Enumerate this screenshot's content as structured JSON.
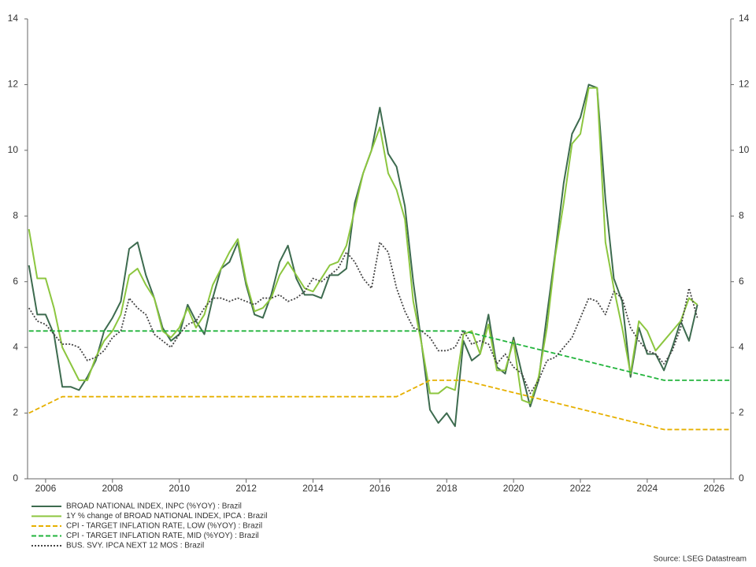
{
  "chart_data": {
    "type": "line",
    "source": "Source: LSEG Datastream",
    "xlim": [
      2005.46,
      2026.5
    ],
    "xticks": [
      2006,
      2008,
      2010,
      2012,
      2014,
      2016,
      2018,
      2020,
      2022,
      2024,
      2026
    ],
    "ylim": [
      0,
      14
    ],
    "yticks": [
      0,
      2,
      4,
      6,
      8,
      10,
      12,
      14
    ],
    "y2lim": [
      0,
      14
    ],
    "y2ticks": [
      0,
      2,
      4,
      6,
      8,
      10,
      12,
      14
    ],
    "series": [
      {
        "name": "BROAD NATIONAL INDEX, INPC (%YOY) : Brazil",
        "color": "#3d6b4f",
        "style": "solid",
        "x": [
          2005.5,
          2005.75,
          2006,
          2006.25,
          2006.5,
          2006.75,
          2007,
          2007.25,
          2007.5,
          2007.75,
          2008,
          2008.25,
          2008.5,
          2008.75,
          2009,
          2009.25,
          2009.5,
          2009.75,
          2010,
          2010.25,
          2010.5,
          2010.75,
          2011,
          2011.25,
          2011.5,
          2011.75,
          2012,
          2012.25,
          2012.5,
          2012.75,
          2013,
          2013.25,
          2013.5,
          2013.75,
          2014,
          2014.25,
          2014.5,
          2014.75,
          2015,
          2015.25,
          2015.5,
          2015.75,
          2016,
          2016.25,
          2016.5,
          2016.75,
          2017,
          2017.25,
          2017.5,
          2017.75,
          2018,
          2018.25,
          2018.5,
          2018.75,
          2019,
          2019.25,
          2019.5,
          2019.75,
          2020,
          2020.25,
          2020.5,
          2020.75,
          2021,
          2021.25,
          2021.5,
          2021.75,
          2022,
          2022.25,
          2022.5,
          2022.75,
          2023,
          2023.25,
          2023.5,
          2023.75,
          2024,
          2024.25,
          2024.5,
          2024.75,
          2025,
          2025.25,
          2025.5
        ],
        "values": [
          6.5,
          5.0,
          5.0,
          4.4,
          2.8,
          2.8,
          2.7,
          3.1,
          3.6,
          4.5,
          4.9,
          5.4,
          7.0,
          7.2,
          6.2,
          5.5,
          4.6,
          4.2,
          4.4,
          5.3,
          4.8,
          4.4,
          5.5,
          6.4,
          6.6,
          7.2,
          5.9,
          5.0,
          4.9,
          5.6,
          6.6,
          7.1,
          6.1,
          5.6,
          5.6,
          5.5,
          6.2,
          6.2,
          6.4,
          8.4,
          9.3,
          10.0,
          11.3,
          9.9,
          9.5,
          8.3,
          6.0,
          4.1,
          2.1,
          1.7,
          2.0,
          1.6,
          4.2,
          3.6,
          3.8,
          5.0,
          3.4,
          3.2,
          4.3,
          3.2,
          2.2,
          3.0,
          5.0,
          6.9,
          9.0,
          10.5,
          11.0,
          12.0,
          11.9,
          8.5,
          6.1,
          5.4,
          3.1,
          4.6,
          3.8,
          3.8,
          3.3,
          4.0,
          4.8,
          4.2,
          5.3
        ]
      },
      {
        "name": "1Y % change of BROAD NATIONAL INDEX, IPCA : Brazil",
        "color": "#8cc63f",
        "style": "solid",
        "x": [
          2005.5,
          2005.75,
          2006,
          2006.25,
          2006.5,
          2006.75,
          2007,
          2007.25,
          2007.5,
          2007.75,
          2008,
          2008.25,
          2008.5,
          2008.75,
          2009,
          2009.25,
          2009.5,
          2009.75,
          2010,
          2010.25,
          2010.5,
          2010.75,
          2011,
          2011.25,
          2011.5,
          2011.75,
          2012,
          2012.25,
          2012.5,
          2012.75,
          2013,
          2013.25,
          2013.5,
          2013.75,
          2014,
          2014.25,
          2014.5,
          2014.75,
          2015,
          2015.25,
          2015.5,
          2015.75,
          2016,
          2016.25,
          2016.5,
          2016.75,
          2017,
          2017.25,
          2017.5,
          2017.75,
          2018,
          2018.25,
          2018.5,
          2018.75,
          2019,
          2019.25,
          2019.5,
          2019.75,
          2020,
          2020.25,
          2020.5,
          2020.75,
          2021,
          2021.25,
          2021.5,
          2021.75,
          2022,
          2022.25,
          2022.5,
          2022.75,
          2023,
          2023.25,
          2023.5,
          2023.75,
          2024,
          2024.25,
          2024.5,
          2024.75,
          2025,
          2025.25,
          2025.5
        ],
        "values": [
          7.6,
          6.1,
          6.1,
          5.2,
          4.0,
          3.5,
          3.0,
          3.0,
          3.7,
          4.2,
          4.5,
          5.0,
          6.2,
          6.4,
          5.9,
          5.5,
          4.5,
          4.3,
          4.6,
          5.2,
          4.6,
          5.0,
          5.9,
          6.4,
          6.9,
          7.3,
          6.0,
          5.1,
          5.2,
          5.5,
          6.2,
          6.6,
          6.2,
          5.8,
          5.7,
          6.1,
          6.5,
          6.6,
          7.1,
          8.2,
          9.3,
          10.0,
          10.7,
          9.3,
          8.8,
          7.9,
          5.4,
          4.1,
          2.6,
          2.6,
          2.8,
          2.7,
          4.4,
          4.5,
          3.8,
          4.7,
          3.3,
          3.3,
          4.2,
          2.4,
          2.3,
          3.1,
          4.6,
          6.8,
          8.4,
          10.2,
          10.5,
          11.9,
          11.9,
          7.2,
          5.8,
          4.6,
          3.2,
          4.8,
          4.5,
          3.9,
          4.2,
          4.5,
          4.8,
          5.5,
          5.3
        ]
      },
      {
        "name": "CPI - TARGET INFLATION RATE, LOW (%YOY) : Brazil",
        "color": "#e6b000",
        "style": "dashed",
        "x": [
          2005.5,
          2006.5,
          2016.5,
          2017.5,
          2018.5,
          2024.5,
          2026.5
        ],
        "values": [
          2.0,
          2.5,
          2.5,
          3.0,
          3.0,
          1.5,
          1.5
        ]
      },
      {
        "name": "CPI - TARGET INFLATION RATE, MID (%YOY) : Brazil",
        "color": "#22b43c",
        "style": "dashed",
        "x": [
          2005.5,
          2018.5,
          2024.5,
          2026.5
        ],
        "values": [
          4.5,
          4.5,
          3.0,
          3.0
        ]
      },
      {
        "name": "BUS. SVY. IPCA NEXT 12 MOS : Brazil",
        "color": "#444444",
        "style": "dotted",
        "x": [
          2005.5,
          2005.75,
          2006,
          2006.25,
          2006.5,
          2006.75,
          2007,
          2007.25,
          2007.5,
          2007.75,
          2008,
          2008.25,
          2008.5,
          2008.75,
          2009,
          2009.25,
          2009.5,
          2009.75,
          2010,
          2010.25,
          2010.5,
          2010.75,
          2011,
          2011.25,
          2011.5,
          2011.75,
          2012,
          2012.25,
          2012.5,
          2012.75,
          2013,
          2013.25,
          2013.5,
          2013.75,
          2014,
          2014.25,
          2014.5,
          2014.75,
          2015,
          2015.25,
          2015.5,
          2015.75,
          2016,
          2016.25,
          2016.5,
          2016.75,
          2017,
          2017.25,
          2017.5,
          2017.75,
          2018,
          2018.25,
          2018.5,
          2018.75,
          2019,
          2019.25,
          2019.5,
          2019.75,
          2020,
          2020.25,
          2020.5,
          2020.75,
          2021,
          2021.25,
          2021.5,
          2021.75,
          2022,
          2022.25,
          2022.5,
          2022.75,
          2023,
          2023.25,
          2023.5,
          2023.75,
          2024,
          2024.25,
          2024.5,
          2024.75,
          2025,
          2025.25,
          2025.5
        ],
        "values": [
          5.2,
          4.8,
          4.7,
          4.4,
          4.1,
          4.1,
          4.0,
          3.6,
          3.7,
          3.9,
          4.3,
          4.5,
          5.5,
          5.2,
          5.0,
          4.4,
          4.2,
          4.0,
          4.4,
          4.7,
          4.8,
          5.2,
          5.5,
          5.5,
          5.4,
          5.5,
          5.4,
          5.3,
          5.5,
          5.5,
          5.6,
          5.4,
          5.5,
          5.7,
          6.1,
          6.0,
          6.2,
          6.4,
          6.9,
          6.6,
          6.1,
          5.8,
          7.2,
          6.9,
          5.8,
          5.1,
          4.6,
          4.5,
          4.3,
          3.9,
          3.9,
          4.0,
          4.5,
          4.1,
          4.2,
          4.1,
          3.5,
          3.8,
          3.4,
          3.2,
          2.6,
          3.0,
          3.6,
          3.7,
          4.0,
          4.3,
          4.9,
          5.5,
          5.4,
          5.0,
          5.7,
          5.5,
          4.6,
          4.2,
          3.9,
          3.8,
          3.5,
          3.9,
          4.6,
          5.8,
          4.9
        ]
      }
    ]
  }
}
